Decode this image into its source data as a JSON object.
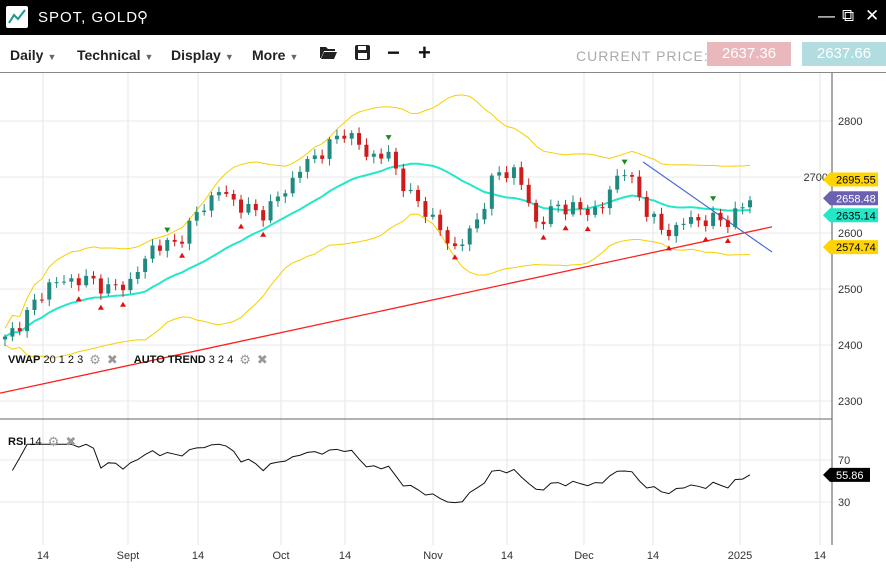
{
  "window": {
    "title": "SPOT, GOLD"
  },
  "toolbar": {
    "menus": [
      "Daily",
      "Technical",
      "Display",
      "More"
    ],
    "current_price_label": "CURRENT PRICE:",
    "bid": "2637.36",
    "ask": "2637.66"
  },
  "indicators": {
    "vwap_name": "VWAP",
    "vwap_params": "20 1 2 3",
    "trend_name": "AUTO TREND",
    "trend_params": "3 2 4",
    "rsi_name": "RSI",
    "rsi_params": "14"
  },
  "colors": {
    "up": "#1f8a80",
    "down": "#d11a1a",
    "vwap": "#22e8c8",
    "band": "#f5d000",
    "trend": "#ff2020",
    "trend2": "#4a6fd8",
    "rsi_label": "#000"
  },
  "chart_data": {
    "type": "candlestick",
    "instrument": "SPOT, GOLD",
    "interval": "Daily",
    "y_ticks": [
      2800,
      2700,
      2600,
      2500,
      2400,
      2300
    ],
    "ylim": [
      2230,
      2880
    ],
    "x_tick_labels": [
      "14",
      "Sept",
      "14",
      "Oct",
      "14",
      "Nov",
      "14",
      "Dec",
      "14",
      "2025",
      "14"
    ],
    "close_approx": [
      2409,
      2453,
      2507,
      2516,
      2516,
      2498,
      2516,
      2579,
      2579,
      2632,
      2677,
      2650,
      2632,
      2668,
      2721,
      2748,
      2784,
      2739,
      2739,
      2668,
      2632,
      2570,
      2605,
      2704,
      2712,
      2614,
      2650,
      2641,
      2641,
      2721,
      2650,
      2596,
      2623,
      2623,
      2623,
      2658
    ],
    "price_labels": {
      "upper_band": "2695.55",
      "last": "2658.48",
      "vwap": "2635.14",
      "lower_band": "2574.74"
    },
    "trendlines": [
      {
        "from": 2314,
        "to": 2611,
        "color": "red"
      },
      {
        "from": 2727,
        "to": 2566,
        "color": "blue"
      }
    ],
    "rsi": {
      "ticks": [
        70,
        30
      ],
      "last": "55.86"
    }
  }
}
